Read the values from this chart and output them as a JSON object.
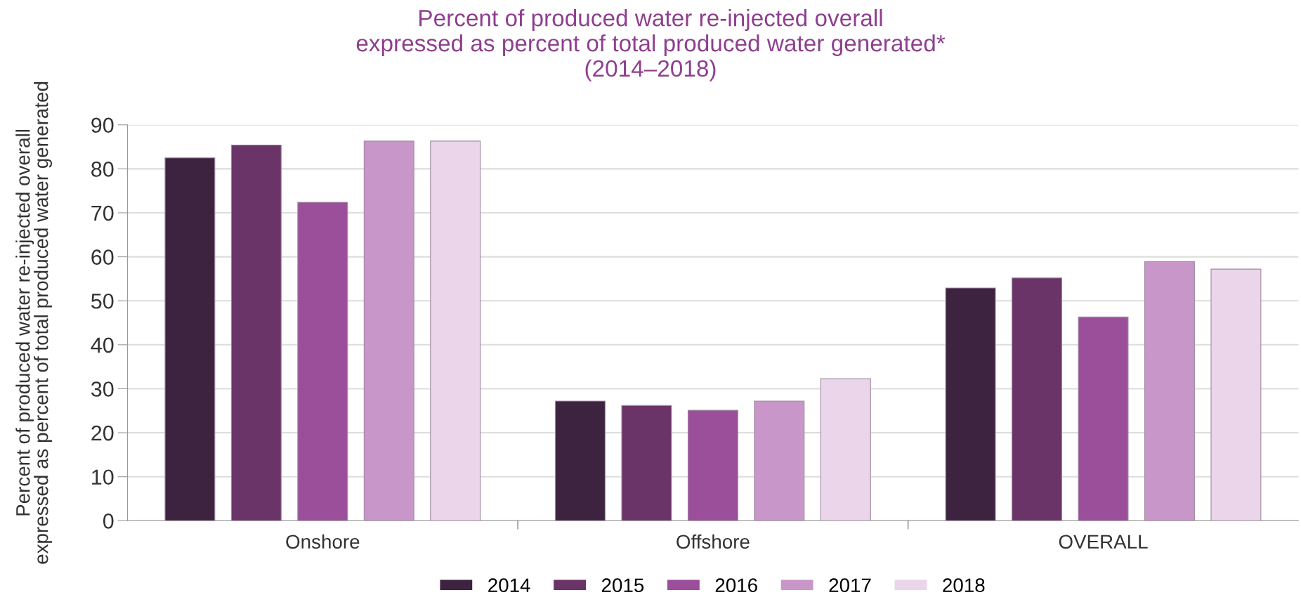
{
  "chart_data": {
    "type": "bar",
    "title": "Percent of produced water re-injected overall\nexpressed as percent of total produced water generated*\n(2014–2018)",
    "ylabel": "Percent of produced water re-injected overall\nexpressed as percent of total produced water generated",
    "categories": [
      "Onshore",
      "Offshore",
      "OVERALL"
    ],
    "series": [
      {
        "name": "2014",
        "color": "#3e2340",
        "values": [
          82.5,
          27.2,
          52.9
        ]
      },
      {
        "name": "2015",
        "color": "#6a3468",
        "values": [
          85.4,
          26.2,
          55.2
        ]
      },
      {
        "name": "2016",
        "color": "#9b4f9b",
        "values": [
          72.4,
          25.1,
          46.3
        ]
      },
      {
        "name": "2017",
        "color": "#c896c8",
        "values": [
          86.3,
          27.2,
          58.9
        ]
      },
      {
        "name": "2018",
        "color": "#ead5ea",
        "values": [
          86.3,
          32.3,
          57.2
        ]
      }
    ],
    "ylim": [
      0,
      90
    ],
    "yticks": [
      0,
      10,
      20,
      30,
      40,
      50,
      60,
      70,
      80,
      90
    ],
    "grid": "y",
    "legend": "bottom"
  }
}
